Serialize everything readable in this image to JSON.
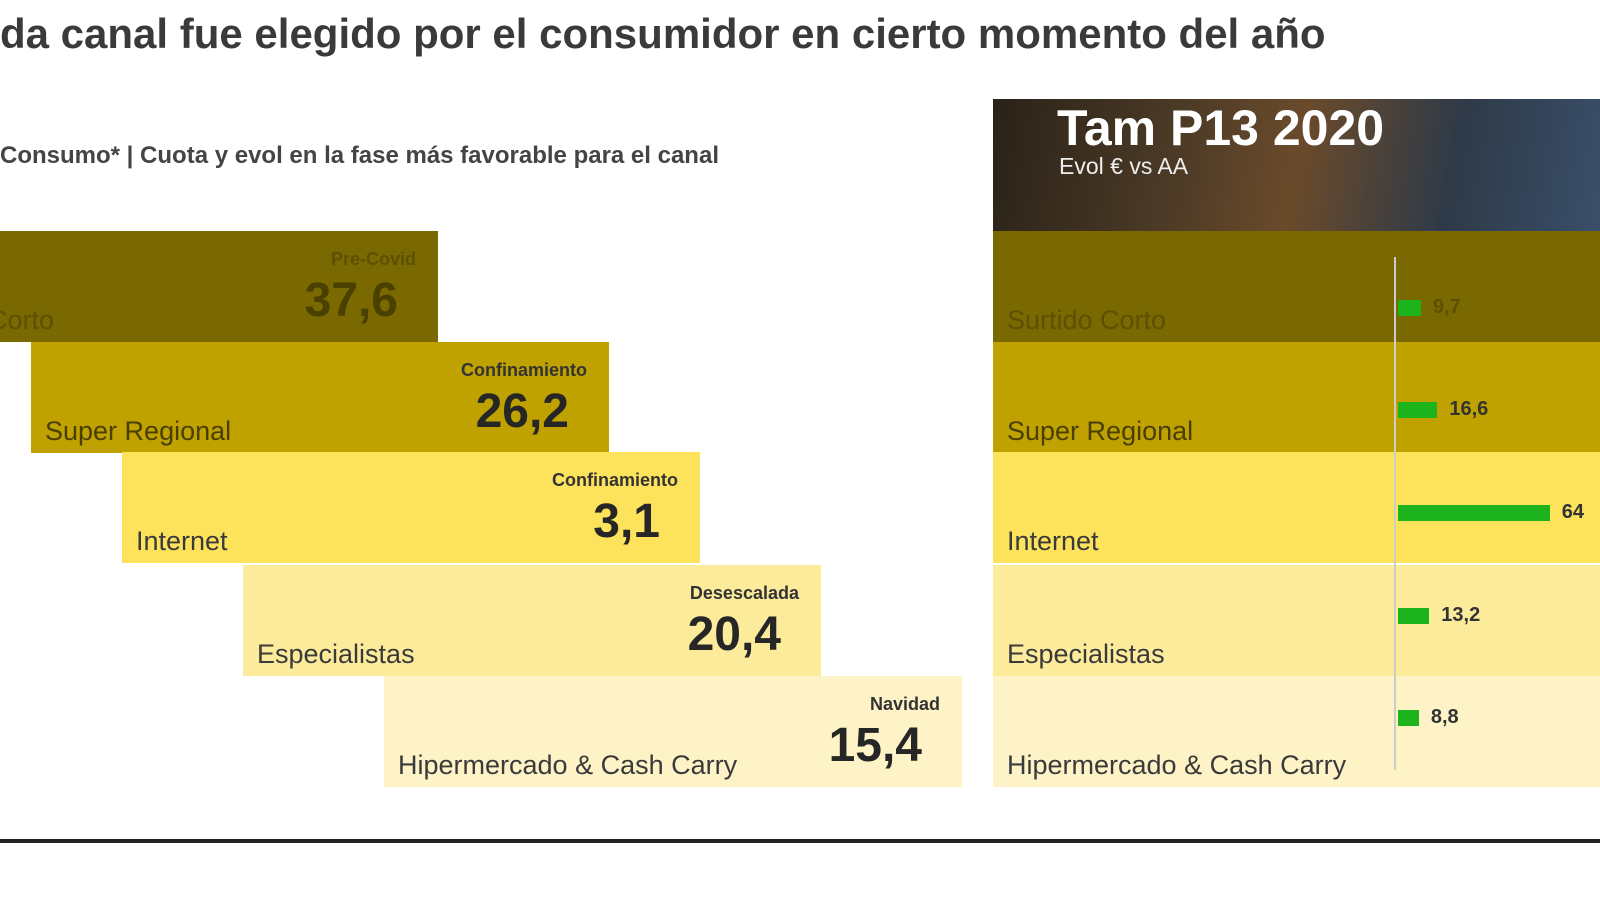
{
  "title": "da canal fue elegido por el consumidor en cierto momento del año",
  "subtitle": "Consumo* | Cuota y evol en la fase más favorable para el canal",
  "share_panel": {
    "rows": [
      {
        "name": "Surtido Corto",
        "phase": "Pre-Covid",
        "share": "37,6"
      },
      {
        "name": "Super Regional",
        "phase": "Confinamiento",
        "share": "26,2"
      },
      {
        "name": "Internet",
        "phase": "Confinamiento",
        "share": "3,1"
      },
      {
        "name": "Especialistas",
        "phase": "Desescalada",
        "share": "20,4"
      },
      {
        "name": "Hipermercado & Cash Carry",
        "phase": "Navidad",
        "share": "15,4"
      }
    ]
  },
  "chart_data": {
    "type": "bar",
    "title": "Tam P13 2020",
    "subtitle": "Evol € vs AA",
    "categories": [
      "Surtido Corto",
      "Super Regional",
      "Internet",
      "Especialistas",
      "Hipermercado & Cash Carry"
    ],
    "values": [
      9.7,
      16.6,
      64,
      13.2,
      8.8
    ],
    "value_labels": [
      "9,7",
      "16,6",
      "64",
      "13,2",
      "8,8"
    ],
    "color": "#1db31d",
    "xlim": [
      0,
      70
    ]
  }
}
